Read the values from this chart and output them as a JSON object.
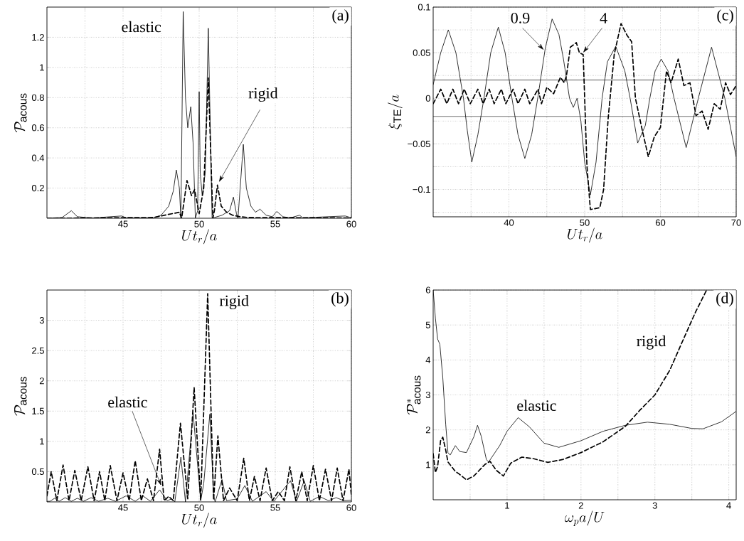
{
  "chart_data": [
    {
      "type": "line",
      "annotations": [
        "(a)"
      ],
      "xlabel": "Ut_r/a",
      "ylabel": "\\mathcal{P}_{\\mathrm{acous}}",
      "xlim": [
        40,
        60
      ],
      "ylim": [
        0,
        1.4
      ],
      "xticks": [
        {
          "value": 42.5,
          "label": null
        },
        45,
        {
          "value": 47.5,
          "label": null
        },
        50,
        {
          "value": 52.5,
          "label": null
        },
        55,
        {
          "value": 57.5,
          "label": null
        },
        60
      ],
      "yticks": [
        0.2,
        0.4,
        0.6,
        0.8,
        1,
        1.2
      ],
      "grid": true,
      "series": [
        {
          "name": "elastic",
          "color": "#000000",
          "line_style": "solid",
          "x": [
            40,
            41,
            41.6,
            42,
            43,
            44.9,
            45.2,
            47,
            47.5,
            48,
            48.3,
            48.5,
            48.7,
            48.8,
            48.95,
            49.1,
            49.25,
            49.45,
            49.6,
            49.75,
            49.9,
            50,
            50.07,
            50.2,
            50.4,
            50.6,
            50.75,
            50.85,
            51.5,
            52,
            52.25,
            52.45,
            52.55,
            52.9,
            53.1,
            53.4,
            53.7,
            54,
            54.4,
            54.8,
            55.1,
            55.5,
            56,
            56.6,
            56.8,
            59.6,
            60
          ],
          "values": [
            0,
            0.005,
            0.05,
            0.01,
            0.002,
            0.015,
            0.003,
            0.003,
            0.02,
            0.08,
            0.18,
            0.32,
            0.2,
            0,
            1.37,
            0.8,
            0.6,
            0.74,
            0.5,
            0,
            0.05,
            0.84,
            0.3,
            0.15,
            0.3,
            1.26,
            0.5,
            0,
            0.02,
            0.05,
            0.14,
            0.03,
            0,
            0.49,
            0.2,
            0.08,
            0.04,
            0.06,
            0.02,
            0.01,
            0.045,
            0.01,
            0.003,
            0.02,
            0.003,
            0.015,
            0.003
          ]
        },
        {
          "name": "rigid",
          "color": "#000000",
          "line_style": "dashed",
          "x": [
            40,
            47,
            48.7,
            48.85,
            49.2,
            49.5,
            49.7,
            50,
            50.3,
            50.6,
            50.9,
            51,
            51.2,
            51.45,
            51.8,
            52.2,
            52.7,
            53.2,
            60
          ],
          "values": [
            0,
            0.005,
            0.04,
            0,
            0.25,
            0.15,
            0.19,
            0.03,
            0.2,
            0.93,
            0,
            0.05,
            0.22,
            0.08,
            0.04,
            0.02,
            0.01,
            0.005,
            0.002
          ]
        }
      ]
    },
    {
      "type": "line",
      "annotations": [
        "(c)"
      ],
      "xlabel": "Ut_r/a",
      "ylabel": "\\xi_{\\mathrm{TE}}/a",
      "xlim": [
        30,
        70
      ],
      "ylim": [
        -0.13,
        0.1
      ],
      "xticks": [
        {
          "value": 35,
          "label": null
        },
        40,
        {
          "value": 45,
          "label": null
        },
        50,
        {
          "value": 55,
          "label": null
        },
        60,
        {
          "value": 65,
          "label": null
        },
        70
      ],
      "yticks": [
        {
          "value": -0.125,
          "label": null
        },
        {
          "value": -0.1,
          "label": "−0.1"
        },
        {
          "value": -0.075,
          "label": null
        },
        {
          "value": -0.05,
          "label": "−0.05"
        },
        {
          "value": -0.025,
          "label": null
        },
        0,
        {
          "value": 0.025,
          "label": null
        },
        0.05,
        {
          "value": 0.075,
          "label": null
        },
        0.1
      ],
      "grid": true,
      "ref_lines": [
        {
          "axis": "y",
          "value": 0.02
        },
        {
          "axis": "y",
          "value": -0.02
        }
      ],
      "series": [
        {
          "name": "0.9",
          "color": "#000000",
          "line_style": "solid",
          "x": [
            30,
            31,
            32,
            33,
            34,
            34.5,
            35.1,
            35.9,
            36.7,
            37.6,
            38.6,
            39.5,
            40.4,
            41.2,
            42.1,
            43,
            43.8,
            44.8,
            45.7,
            46.6,
            47.2,
            48,
            48.5,
            49,
            49.5,
            50,
            50.75,
            51.5,
            52.3,
            53,
            54.1,
            55.3,
            56,
            57,
            58,
            58.6,
            59.3,
            60.1,
            61,
            61.8,
            63.4,
            65,
            66.75,
            68.5,
            70
          ],
          "values": [
            0.015,
            0.05,
            0.075,
            0.05,
            0,
            -0.035,
            -0.07,
            -0.04,
            0,
            0.05,
            0.078,
            0.05,
            0,
            -0.04,
            -0.066,
            -0.04,
            0,
            0.055,
            0.087,
            0.07,
            0.043,
            0,
            -0.01,
            0,
            -0.025,
            -0.07,
            -0.106,
            -0.07,
            0,
            0.04,
            0.057,
            0.03,
            0,
            -0.049,
            -0.03,
            0,
            0.03,
            0.043,
            0.03,
            0,
            -0.054,
            0,
            0.056,
            0,
            -0.064
          ]
        },
        {
          "name": "4",
          "color": "#000000",
          "line_style": "dashed",
          "x": [
            30,
            31,
            31.8,
            32.6,
            33.35,
            34.1,
            34.9,
            35.9,
            36.6,
            37.4,
            38.05,
            39,
            39.6,
            40.55,
            41.2,
            42.1,
            42.75,
            43.85,
            44.3,
            45,
            45.9,
            46.8,
            47.3,
            47.6,
            48.1,
            48.9,
            49.3,
            49.8,
            50,
            50.3,
            50.75,
            52,
            52.5,
            53.1,
            53.9,
            54.8,
            55.6,
            56.2,
            56.7,
            57.6,
            58.4,
            59.2,
            60,
            60.8,
            61.4,
            62.35,
            63.1,
            63.9,
            64.7,
            65.5,
            66.3,
            67.1,
            67.9,
            68.6,
            69.25,
            70
          ],
          "values": [
            -0.006,
            0.01,
            -0.006,
            0.01,
            -0.006,
            0.01,
            -0.006,
            0.01,
            -0.006,
            0.01,
            -0.006,
            0.01,
            -0.006,
            0.01,
            -0.006,
            0.01,
            -0.006,
            0.01,
            -0.006,
            0.012,
            0.005,
            0.023,
            0.017,
            0.025,
            0.056,
            0.061,
            0.05,
            0.048,
            0,
            -0.074,
            -0.122,
            -0.12,
            -0.1,
            -0.022,
            0.048,
            0.082,
            0.069,
            0.062,
            0,
            -0.035,
            -0.064,
            -0.042,
            -0.032,
            0.03,
            0.017,
            0.043,
            0.014,
            0.017,
            -0.019,
            -0.014,
            -0.034,
            -0.006,
            -0.012,
            0.017,
            0.004,
            0.014
          ]
        }
      ]
    },
    {
      "type": "line",
      "annotations": [
        "(b)"
      ],
      "xlabel": "Ut_r/a",
      "ylabel": "\\mathcal{P}_{\\mathrm{acous}}",
      "xlim": [
        40,
        60
      ],
      "ylim": [
        0,
        3.5
      ],
      "xticks": [
        {
          "value": 42.5,
          "label": null
        },
        45,
        {
          "value": 47.5,
          "label": null
        },
        50,
        {
          "value": 52.5,
          "label": null
        },
        55,
        {
          "value": 57.5,
          "label": null
        },
        60
      ],
      "yticks": [
        0.5,
        1,
        1.5,
        2,
        2.5,
        3
      ],
      "grid": true,
      "series": [
        {
          "name": "elastic",
          "color": "#000000",
          "line_style": "solid",
          "x": [
            40,
            40.2,
            40.5,
            40.8,
            41.2,
            41.6,
            42,
            42.4,
            42.9,
            43.4,
            44,
            44.5,
            45.2,
            45.8,
            46.3,
            46.8,
            47.4,
            47.9,
            48.2,
            48.4,
            48.8,
            49.1,
            49.6,
            50.1,
            50.3,
            50.7,
            50.95,
            51.05,
            51.5,
            51.8,
            52.5,
            53,
            53.5,
            54.4,
            54.9,
            56,
            56.4,
            56.9,
            57.3,
            57.9,
            58.5,
            59,
            59.5,
            60
          ],
          "values": [
            0.01,
            0.01,
            0.06,
            0.01,
            0.07,
            0.01,
            0.06,
            0.01,
            0.07,
            0.01,
            0.06,
            0.01,
            0.1,
            0.01,
            0.1,
            0.01,
            0.2,
            0.02,
            0.05,
            0,
            0.74,
            0,
            1.48,
            0.02,
            0.3,
            1.45,
            0.1,
            0,
            0.37,
            0.02,
            0.05,
            0.27,
            0.01,
            0.17,
            0.01,
            0.35,
            0.01,
            0.35,
            0.01,
            0.09,
            0.02,
            0.07,
            0.02,
            0.03
          ]
        },
        {
          "name": "rigid",
          "color": "#000000",
          "line_style": "dashed",
          "x": [
            40,
            40.28,
            40.65,
            41.06,
            41.45,
            41.83,
            42.25,
            42.69,
            43.1,
            43.46,
            43.8,
            44.16,
            44.6,
            45,
            45.4,
            45.8,
            46.2,
            46.6,
            47,
            47.4,
            47.7,
            48,
            48.3,
            48.77,
            49.25,
            49.67,
            50.1,
            50.56,
            50.95,
            51.23,
            51.6,
            52,
            52.5,
            52.93,
            53.3,
            53.63,
            54,
            54.4,
            54.8,
            55.2,
            55.6,
            55.96,
            56.35,
            56.74,
            57.1,
            57.5,
            57.9,
            58.3,
            58.7,
            59.07,
            59.45,
            59.84,
            60
          ],
          "values": [
            0.1,
            0.5,
            0.02,
            0.61,
            0.02,
            0.52,
            0.02,
            0.58,
            0.02,
            0.5,
            0.02,
            0.6,
            0.02,
            0.48,
            0.02,
            0.68,
            0.02,
            0.38,
            0.02,
            0.87,
            0.02,
            0.09,
            0.02,
            1.3,
            0.05,
            1.89,
            0.03,
            3.44,
            0.03,
            1.09,
            0.02,
            0.23,
            0.02,
            0.72,
            0.02,
            0.42,
            0.02,
            0.56,
            0.02,
            0.17,
            0.02,
            0.58,
            0.02,
            0.5,
            0.02,
            0.6,
            0.02,
            0.54,
            0.02,
            0.56,
            0.02,
            0.54,
            0.1
          ]
        }
      ]
    },
    {
      "type": "line",
      "annotations": [
        "(d)"
      ],
      "xlabel": "\\omega_p a/U",
      "ylabel": "\\mathcal{P}^*_{\\mathrm{acous}}",
      "xlim": [
        0,
        4.1
      ],
      "ylim": [
        0,
        6
      ],
      "xticks": [
        {
          "value": 0.5,
          "label": null
        },
        1,
        {
          "value": 1.5,
          "label": null
        },
        2,
        {
          "value": 2.5,
          "label": null
        },
        3,
        {
          "value": 3.5,
          "label": null
        },
        4
      ],
      "yticks": [
        1,
        2,
        3,
        4,
        5,
        6
      ],
      "grid": true,
      "series": [
        {
          "name": "elastic",
          "color": "#000000",
          "line_style": "solid",
          "x": [
            0,
            0.03,
            0.06,
            0.09,
            0.13,
            0.17,
            0.2,
            0.23,
            0.3,
            0.36,
            0.45,
            0.55,
            0.6,
            0.65,
            0.72,
            0.75,
            0.9,
            1,
            1.15,
            1.3,
            1.5,
            1.7,
            2,
            2.3,
            2.6,
            2.9,
            3.2,
            3.5,
            3.65,
            3.9,
            4.1
          ],
          "values": [
            6,
            5.2,
            4.6,
            4.45,
            3.5,
            2.15,
            1.35,
            1.28,
            1.55,
            1.38,
            1.35,
            1.8,
            2.13,
            1.82,
            1.15,
            1.08,
            1.55,
            1.96,
            2.35,
            2.09,
            1.62,
            1.5,
            1.69,
            1.96,
            2.13,
            2.22,
            2.16,
            2.04,
            2.03,
            2.23,
            2.53
          ]
        },
        {
          "name": "rigid",
          "color": "#000000",
          "line_style": "dashed",
          "x": [
            0,
            0.03,
            0.06,
            0.1,
            0.13,
            0.17,
            0.2,
            0.3,
            0.35,
            0.45,
            0.55,
            0.7,
            0.77,
            0.85,
            0.95,
            1.05,
            1.2,
            1.35,
            1.55,
            1.75,
            2,
            2.3,
            2.6,
            2.8,
            3,
            3.2,
            3.4,
            3.55,
            3.7
          ],
          "values": [
            1.32,
            0.78,
            0.95,
            1.69,
            1.79,
            1.42,
            1.08,
            0.81,
            0.74,
            0.57,
            0.68,
            1.01,
            1.1,
            0.85,
            0.68,
            1.05,
            1.22,
            1.18,
            1.07,
            1.15,
            1.35,
            1.66,
            2.1,
            2.57,
            3,
            3.7,
            4.66,
            5.37,
            6
          ]
        }
      ]
    }
  ]
}
